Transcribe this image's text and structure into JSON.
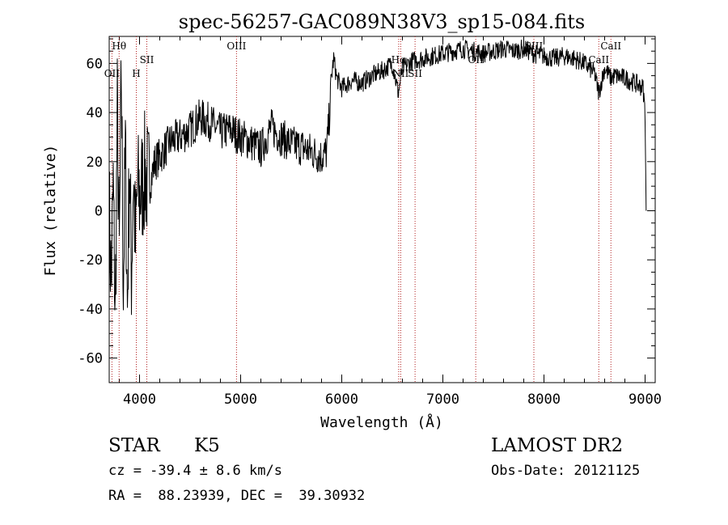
{
  "chart_data": {
    "type": "line",
    "title": "spec-56257-GAC089N38V3_sp15-084.fits",
    "xlabel": "Wavelength (Å)",
    "ylabel": "Flux (relative)",
    "xlim": [
      3700,
      9100
    ],
    "ylim": [
      -70,
      71
    ],
    "x_ticks": [
      4000,
      5000,
      6000,
      7000,
      8000,
      9000
    ],
    "y_ticks": [
      -60,
      -40,
      -20,
      0,
      20,
      40,
      60
    ],
    "grid": false,
    "colors": {
      "spectrum": "#000000",
      "lines": "#b22222",
      "axes": "#000000"
    },
    "series": [
      {
        "name": "spectrum",
        "x": [
          3700,
          3720,
          3740,
          3760,
          3780,
          3800,
          3820,
          3840,
          3860,
          3880,
          3900,
          3920,
          3940,
          3960,
          3980,
          4000,
          4050,
          4100,
          4150,
          4200,
          4300,
          4400,
          4500,
          4600,
          4700,
          4800,
          4900,
          5000,
          5100,
          5200,
          5300,
          5400,
          5500,
          5600,
          5700,
          5800,
          5850,
          5880,
          5900,
          5920,
          5950,
          6000,
          6100,
          6200,
          6300,
          6400,
          6500,
          6560,
          6600,
          6700,
          6800,
          6900,
          7000,
          7100,
          7200,
          7300,
          7400,
          7500,
          7600,
          7700,
          7800,
          7900,
          8000,
          8100,
          8200,
          8300,
          8400,
          8500,
          8542,
          8600,
          8662,
          8700,
          8800,
          8900,
          8980,
          9000,
          9010
        ],
        "y": [
          0,
          -30,
          10,
          -45,
          40,
          -20,
          55,
          -30,
          25,
          -40,
          20,
          -25,
          15,
          -15,
          10,
          5,
          15,
          10,
          20,
          22,
          28,
          30,
          33,
          38,
          36,
          32,
          33,
          30,
          28,
          25,
          34,
          30,
          27,
          26,
          24,
          22,
          24,
          40,
          55,
          62,
          54,
          50,
          53,
          52,
          55,
          57,
          60,
          48,
          58,
          61,
          62,
          63,
          64,
          65,
          66,
          65,
          64,
          65,
          66,
          65,
          66,
          64,
          63,
          62,
          63,
          62,
          60,
          56,
          48,
          58,
          54,
          55,
          54,
          52,
          50,
          40,
          0
        ]
      }
    ],
    "lines": [
      {
        "label": "Hθ",
        "x": 3798,
        "label_row": "top"
      },
      {
        "label": "OII",
        "x": 3727,
        "label_row": "low"
      },
      {
        "label": "H",
        "x": 3968,
        "label_row": "low"
      },
      {
        "label": "SII",
        "x": 4072,
        "label_row": "mid"
      },
      {
        "label": "OIII",
        "x": 4959,
        "label_row": "top"
      },
      {
        "label": "Hα",
        "x": 6563,
        "label_row": "mid"
      },
      {
        "label": "NII",
        "x": 6583,
        "label_row": "low"
      },
      {
        "label": "SII",
        "x": 6725,
        "label_row": "low"
      },
      {
        "label": "OII",
        "x": 7325,
        "label_row": "mid"
      },
      {
        "label": "SIII",
        "x": 7900,
        "label_row": "top"
      },
      {
        "label": "CaII",
        "x": 8542,
        "label_row": "mid"
      },
      {
        "label": "CaII",
        "x": 8662,
        "label_row": "top"
      }
    ]
  },
  "info": {
    "class_label": "STAR",
    "subclass": "K5",
    "survey": "LAMOST DR2",
    "redshift": "cz = -39.4 ± 8.6 km/s",
    "obs_date": "Obs-Date: 20121125",
    "coords": "RA =  88.23939, DEC =  39.30932"
  }
}
